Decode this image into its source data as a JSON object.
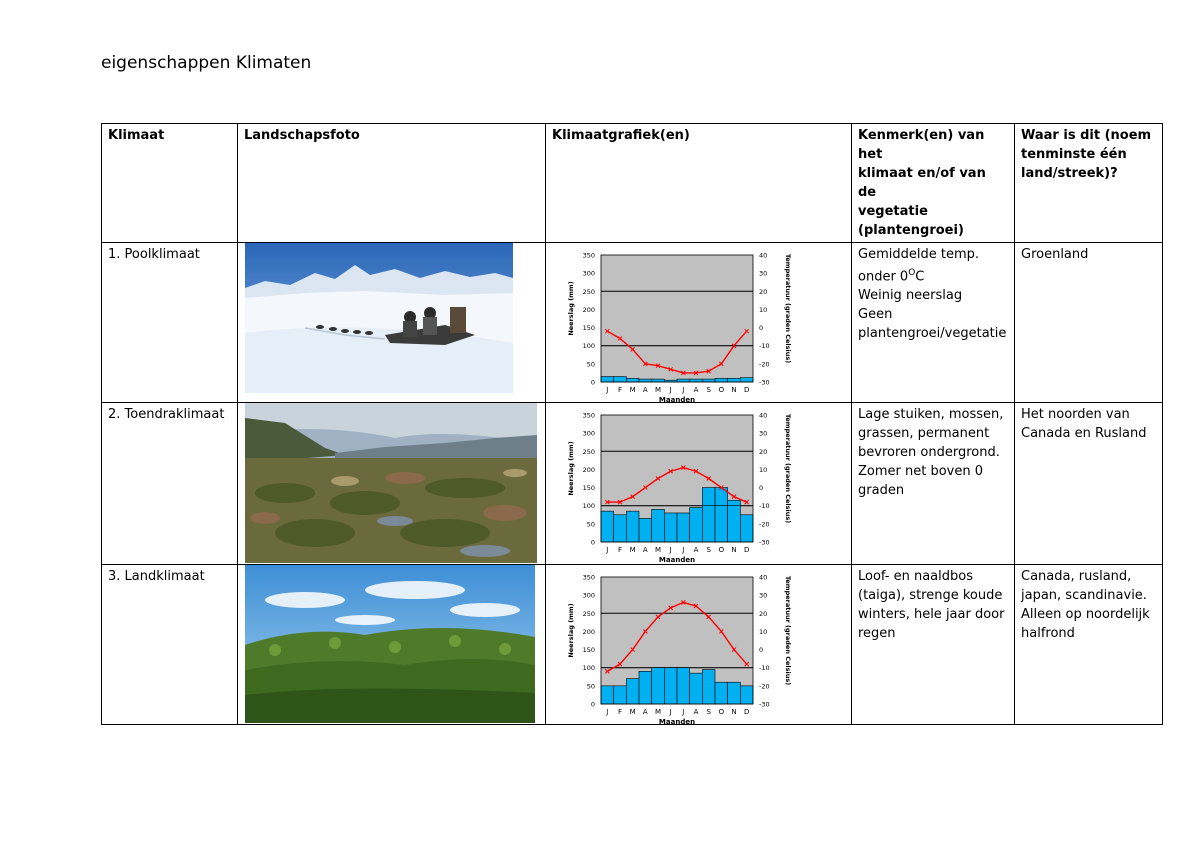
{
  "title": "eigenschappen Klimaten",
  "headers": {
    "klimaat": "Klimaat",
    "landschap": "Landschapsfoto",
    "grafiek": "Klimaatgrafiek(en)",
    "kenmerk_lines": [
      "Kenmerk(en) van het",
      "klimaat en/of van de",
      "vegetatie",
      "(plantengroei)"
    ],
    "waar_lines": [
      "Waar is dit (noem",
      "tenminste één",
      "land/streek)?"
    ]
  },
  "rows": [
    {
      "name": "1. Poolklimaat",
      "kenmerk_lines": [
        "Gemiddelde temp.",
        "onder 0",
        "Weinig neerslag",
        "Geen",
        "plantengroei/vegetatie"
      ],
      "kenmerk_sup": "O",
      "kenmerk_suffix": "C",
      "waar_lines": [
        "Groenland"
      ]
    },
    {
      "name": "2. Toendraklimaat",
      "kenmerk_lines": [
        "Lage stuiken, mossen,",
        "grassen, permanent",
        "bevroren ondergrond.",
        "Zomer net boven 0",
        "graden"
      ],
      "waar_lines": [
        "Het noorden van",
        "Canada en Rusland"
      ]
    },
    {
      "name": "3. Landklimaat",
      "kenmerk_lines": [
        "Loof- en naaldbos",
        "(taiga), strenge koude",
        "winters, hele jaar door",
        "regen"
      ],
      "waar_lines": [
        "Canada, rusland,",
        "japan, scandinavie.",
        "Alleen op noordelijk",
        "halfrond"
      ]
    }
  ],
  "chart_data": [
    {
      "type": "bar",
      "categories": [
        "J",
        "F",
        "M",
        "A",
        "M",
        "J",
        "J",
        "A",
        "S",
        "O",
        "N",
        "D"
      ],
      "xlabel": "Maanden",
      "ylabel": "Neerslag (mm)",
      "y2label": "Temperatuur (graden Celsius)",
      "ylim": [
        0,
        350
      ],
      "y2lim": [
        -30,
        40
      ],
      "yticks": [
        "0",
        "50",
        "100",
        "150",
        "200",
        "250",
        "300",
        "350"
      ],
      "y2ticks": [
        "-30",
        "-20",
        "-10",
        "0",
        "10",
        "20",
        "30",
        "40"
      ],
      "series": [
        {
          "values": [
            15,
            15,
            10,
            8,
            8,
            5,
            8,
            8,
            8,
            10,
            10,
            12
          ]
        },
        {
          "values": [
            -2,
            -6,
            -12,
            -20,
            -21,
            -23,
            -25,
            -25,
            -24,
            -20,
            -10,
            -2
          ]
        }
      ],
      "colors": {
        "bars": "#00b0f0",
        "line": "#ff0000",
        "plot_bg": "#c0c0c0"
      }
    },
    {
      "type": "bar",
      "categories": [
        "J",
        "F",
        "M",
        "A",
        "M",
        "J",
        "J",
        "A",
        "S",
        "O",
        "N",
        "D"
      ],
      "xlabel": "Maanden",
      "ylabel": "Neerslag (mm)",
      "y2label": "Temperatuur (graden Celsius)",
      "ylim": [
        0,
        350
      ],
      "y2lim": [
        -30,
        40
      ],
      "yticks": [
        "0",
        "50",
        "100",
        "150",
        "200",
        "250",
        "300",
        "350"
      ],
      "y2ticks": [
        "-30",
        "-20",
        "-10",
        "0",
        "10",
        "20",
        "30",
        "40"
      ],
      "series": [
        {
          "values": [
            85,
            75,
            85,
            65,
            90,
            80,
            80,
            95,
            150,
            150,
            115,
            75
          ]
        },
        {
          "values": [
            -8,
            -8,
            -5,
            0,
            5,
            9,
            11,
            9,
            5,
            0,
            -5,
            -8
          ]
        }
      ],
      "colors": {
        "bars": "#00b0f0",
        "line": "#ff0000",
        "plot_bg": "#c0c0c0"
      }
    },
    {
      "type": "bar",
      "categories": [
        "J",
        "F",
        "M",
        "A",
        "M",
        "J",
        "J",
        "A",
        "S",
        "O",
        "N",
        "D"
      ],
      "xlabel": "Maanden",
      "ylabel": "Neerslag (mm)",
      "y2label": "Temperatuur (graden Celsius)",
      "ylim": [
        0,
        350
      ],
      "y2lim": [
        -30,
        40
      ],
      "yticks": [
        "0",
        "50",
        "100",
        "150",
        "200",
        "250",
        "300",
        "350"
      ],
      "y2ticks": [
        "-30",
        "-20",
        "-10",
        "0",
        "10",
        "20",
        "30",
        "40"
      ],
      "series": [
        {
          "values": [
            50,
            50,
            70,
            90,
            100,
            100,
            100,
            85,
            95,
            60,
            60,
            50
          ]
        },
        {
          "values": [
            -12,
            -8,
            0,
            10,
            18,
            23,
            26,
            24,
            18,
            10,
            0,
            -8
          ]
        }
      ],
      "colors": {
        "bars": "#00b0f0",
        "line": "#ff0000",
        "plot_bg": "#c0c0c0"
      }
    }
  ]
}
